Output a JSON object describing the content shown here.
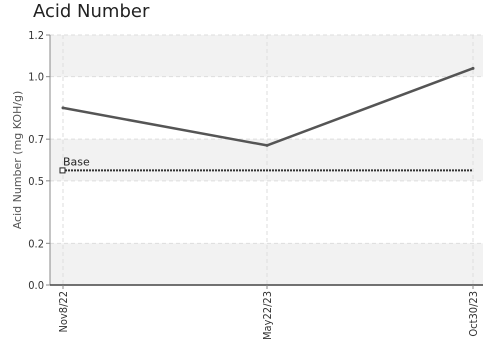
{
  "chart_data": {
    "type": "line",
    "title": "Acid Number",
    "ylabel": "Acid Number (mg KOH/g)",
    "xlabel": "",
    "categories": [
      "Nov8/22",
      "May22/23",
      "Oct30/23"
    ],
    "series": [
      {
        "values": [
          0.85,
          0.67,
          1.04
        ],
        "color": "#555555"
      }
    ],
    "reference_line": {
      "label": "Base",
      "value": 0.55,
      "color": "#333333"
    },
    "ylim": [
      0,
      1.2
    ],
    "yticks": [
      0.0,
      0.2,
      0.5,
      0.7,
      1.0,
      1.2
    ],
    "ytick_labels": [
      "0.0",
      "0.2",
      "0.5",
      "0.7",
      "1.0",
      "1.2"
    ],
    "grid": true,
    "band_color": "#f2f2f2"
  }
}
